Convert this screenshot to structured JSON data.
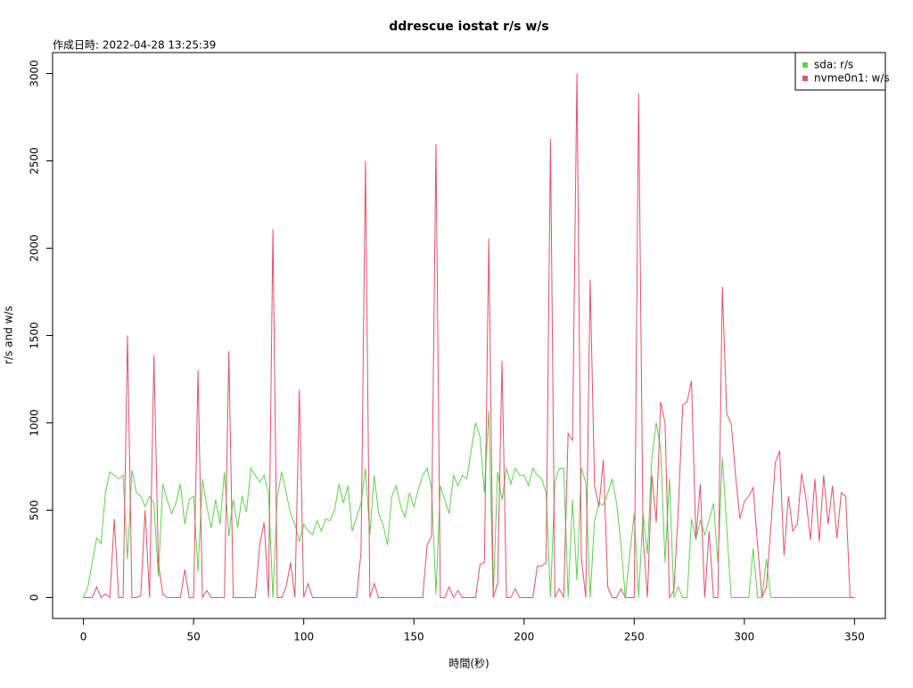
{
  "chart_data": {
    "type": "line",
    "title": "ddrescue iostat r/s w/s",
    "subtitle": "作成日時: 2022-04-28 13:25:39",
    "x_label": "時間(秒)",
    "y_label": "r/s and w/s",
    "x": [
      0,
      2,
      4,
      6,
      8,
      10,
      12,
      14,
      16,
      18,
      20,
      22,
      24,
      26,
      28,
      30,
      32,
      34,
      36,
      38,
      40,
      42,
      44,
      46,
      48,
      50,
      52,
      54,
      56,
      58,
      60,
      62,
      64,
      66,
      68,
      70,
      72,
      74,
      76,
      78,
      80,
      82,
      84,
      86,
      88,
      90,
      92,
      94,
      96,
      98,
      100,
      102,
      104,
      106,
      108,
      110,
      112,
      114,
      116,
      118,
      120,
      122,
      124,
      126,
      128,
      130,
      132,
      134,
      136,
      138,
      140,
      142,
      144,
      146,
      148,
      150,
      152,
      154,
      156,
      158,
      160,
      162,
      164,
      166,
      168,
      170,
      172,
      174,
      176,
      178,
      180,
      182,
      184,
      186,
      188,
      190,
      192,
      194,
      196,
      198,
      200,
      202,
      204,
      206,
      208,
      210,
      212,
      214,
      216,
      218,
      220,
      222,
      224,
      226,
      228,
      230,
      232,
      234,
      236,
      238,
      240,
      242,
      244,
      246,
      248,
      250,
      252,
      254,
      256,
      258,
      260,
      262,
      264,
      266,
      268,
      270,
      272,
      274,
      276,
      278,
      280,
      282,
      284,
      286,
      288,
      290,
      292,
      294,
      296,
      298,
      300,
      302,
      304,
      306,
      308,
      310,
      312,
      314,
      316,
      318,
      320,
      322,
      324,
      326,
      328,
      330,
      332,
      334,
      336,
      338,
      340,
      342,
      344,
      346,
      348,
      350
    ],
    "series": [
      {
        "name": "sda: r/s",
        "color": "#61d04f",
        "values": [
          0,
          60,
          200,
          340,
          310,
          600,
          720,
          700,
          680,
          700,
          220,
          730,
          600,
          580,
          520,
          580,
          540,
          120,
          650,
          560,
          480,
          540,
          650,
          420,
          560,
          580,
          150,
          680,
          520,
          400,
          560,
          420,
          720,
          350,
          560,
          400,
          580,
          490,
          740,
          700,
          660,
          700,
          600,
          0,
          580,
          720,
          600,
          480,
          420,
          320,
          420,
          380,
          360,
          440,
          380,
          450,
          440,
          500,
          650,
          540,
          640,
          380,
          460,
          540,
          740,
          360,
          700,
          480,
          420,
          300,
          580,
          640,
          520,
          460,
          600,
          520,
          620,
          700,
          740,
          630,
          20,
          640,
          560,
          480,
          700,
          640,
          700,
          680,
          840,
          1000,
          920,
          600,
          1070,
          0,
          720,
          560,
          740,
          650,
          740,
          700,
          700,
          640,
          740,
          700,
          680,
          600,
          0,
          660,
          740,
          740,
          0,
          560,
          100,
          740,
          660,
          0,
          440,
          540,
          530,
          600,
          680,
          540,
          300,
          0,
          250,
          480,
          0,
          480,
          250,
          800,
          1000,
          850,
          200,
          680,
          0,
          60,
          0,
          0,
          450,
          330,
          440,
          360,
          440,
          540,
          200,
          800,
          400,
          0,
          0,
          0,
          0,
          0,
          280,
          0,
          0,
          220,
          0,
          0,
          0,
          0,
          0,
          0,
          0,
          0,
          0,
          0,
          0,
          0,
          0,
          0,
          0,
          0,
          0,
          0,
          0,
          0
        ]
      },
      {
        "name": "nvme0n1: w/s",
        "color": "#df536b",
        "values": [
          0,
          0,
          0,
          60,
          0,
          20,
          0,
          450,
          0,
          0,
          1500,
          0,
          0,
          10,
          500,
          0,
          1385,
          200,
          20,
          0,
          0,
          0,
          0,
          160,
          0,
          0,
          1300,
          0,
          40,
          0,
          0,
          0,
          0,
          1410,
          0,
          0,
          0,
          0,
          0,
          0,
          300,
          430,
          0,
          2110,
          0,
          0,
          60,
          200,
          0,
          1190,
          0,
          80,
          0,
          0,
          0,
          0,
          0,
          0,
          0,
          0,
          0,
          0,
          0,
          260,
          2500,
          0,
          80,
          0,
          0,
          0,
          0,
          0,
          0,
          0,
          0,
          0,
          0,
          0,
          300,
          350,
          2595,
          0,
          0,
          60,
          0,
          40,
          0,
          0,
          0,
          0,
          190,
          200,
          2055,
          0,
          80,
          1355,
          0,
          0,
          50,
          0,
          0,
          0,
          0,
          180,
          180,
          200,
          2625,
          0,
          50,
          0,
          940,
          900,
          3000,
          230,
          0,
          1820,
          640,
          520,
          790,
          60,
          0,
          0,
          50,
          0,
          0,
          0,
          2885,
          350,
          0,
          700,
          430,
          1120,
          1000,
          0,
          40,
          500,
          1100,
          1120,
          1240,
          340,
          650,
          0,
          380,
          0,
          0,
          1780,
          1050,
          1000,
          700,
          450,
          550,
          580,
          630,
          300,
          0,
          60,
          400,
          770,
          840,
          240,
          580,
          380,
          420,
          710,
          560,
          330,
          680,
          320,
          700,
          420,
          640,
          340,
          600,
          580,
          0,
          0
        ]
      }
    ],
    "xlim": [
      -14,
      364
    ],
    "ylim": [
      -120,
      3120
    ],
    "xticks": [
      0,
      50,
      100,
      150,
      200,
      250,
      300,
      350
    ],
    "yticks": [
      0,
      500,
      1000,
      1500,
      2000,
      2500,
      3000
    ],
    "legend_position": "top-right"
  }
}
